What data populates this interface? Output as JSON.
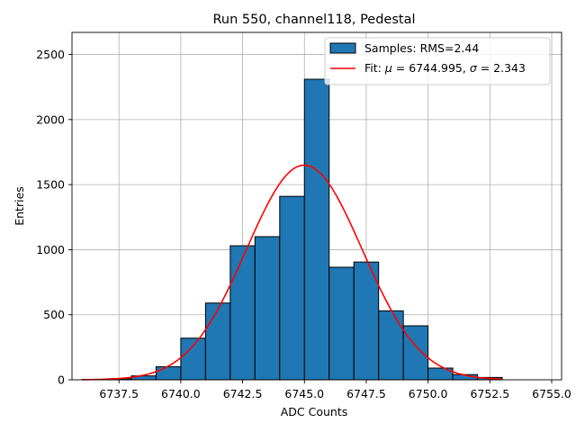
{
  "chart_data": {
    "type": "bar",
    "title": "Run 550, channel118, Pedestal",
    "xlabel": "ADC Counts",
    "ylabel": "Entries",
    "xlim": [
      6735.6,
      6755.4
    ],
    "ylim": [
      0,
      2670
    ],
    "xticks": [
      6737.5,
      6740.0,
      6742.5,
      6745.0,
      6747.5,
      6750.0,
      6752.5,
      6755.0
    ],
    "xtick_labels": [
      "6737.5",
      "6740.0",
      "6742.5",
      "6745.0",
      "6747.5",
      "6750.0",
      "6752.5",
      "6755.0"
    ],
    "yticks": [
      0,
      500,
      1000,
      1500,
      2000,
      2500
    ],
    "ytick_labels": [
      "0",
      "500",
      "1000",
      "1500",
      "2000",
      "2500"
    ],
    "grid": true,
    "legend_position": "top-right",
    "histogram": {
      "name": "Samples: RMS=2.44",
      "color": "#1f77b4",
      "edge_color": "#000000",
      "bin_edges": [
        6736,
        6737,
        6738,
        6739,
        6740,
        6741,
        6742,
        6743,
        6744,
        6745,
        6746,
        6747,
        6748,
        6749,
        6750,
        6751,
        6752,
        6753
      ],
      "counts": [
        2,
        8,
        30,
        100,
        320,
        590,
        1030,
        1100,
        1410,
        2310,
        865,
        905,
        530,
        415,
        90,
        40,
        18
      ]
    },
    "fit": {
      "name": "Fit: μ = 6744.995, σ = 2.343",
      "label_prefix": "Fit: ",
      "mu_symbol": "μ",
      "mu_value": " = 6744.995, ",
      "sigma_symbol": "σ",
      "sigma_value": " = 2.343",
      "color": "#ff0000",
      "mu": 6744.995,
      "sigma": 2.343,
      "amplitude": 1650,
      "x_range": [
        6736,
        6753
      ]
    }
  }
}
